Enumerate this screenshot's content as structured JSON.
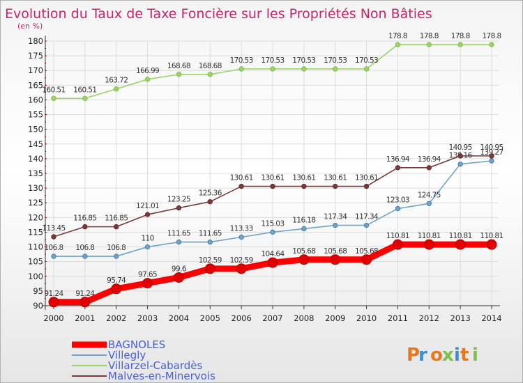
{
  "chart_data": {
    "type": "line",
    "title": "Evolution du Taux de Taxe Foncière sur les Propriétés Non Bâties",
    "unit_label": "(en %)",
    "x": [
      "2000",
      "2001",
      "2002",
      "2003",
      "2004",
      "2005",
      "2006",
      "2007",
      "2008",
      "2009",
      "2010",
      "2011",
      "2012",
      "2013",
      "2014"
    ],
    "ylim": [
      90,
      180
    ],
    "yticks": [
      "90",
      "95",
      "100",
      "105",
      "110",
      "115",
      "120",
      "125",
      "130",
      "135",
      "140",
      "145",
      "150",
      "155",
      "160",
      "165",
      "170",
      "175",
      "180"
    ],
    "grid": true,
    "legend_position": "bottom-left",
    "series": [
      {
        "name": "BAGNOLES",
        "color": "#ff0000",
        "point_color": "#cc0000",
        "bold": true,
        "values": [
          91.24,
          91.24,
          95.74,
          97.65,
          99.6,
          102.59,
          102.59,
          104.64,
          105.68,
          105.68,
          105.68,
          110.81,
          110.81,
          110.81,
          110.81
        ],
        "labels": [
          "91.24",
          "91.24",
          "95.74",
          "97.65",
          "99.6",
          "102.59",
          "102.59",
          "104.64",
          "105.68",
          "105.68",
          "105.68",
          "110.81",
          "110.81",
          "110.81",
          "110.81"
        ]
      },
      {
        "name": "Villegly",
        "color": "#6fa3c9",
        "point_color": "#4a7fb0",
        "bold": false,
        "values": [
          106.8,
          106.8,
          106.8,
          110,
          111.65,
          111.65,
          113.33,
          115.03,
          116.18,
          117.34,
          117.34,
          123.03,
          124.75,
          138.16,
          139.27
        ],
        "labels": [
          "106.8",
          "106.8",
          "106.8",
          "110",
          "111.65",
          "111.65",
          "113.33",
          "115.03",
          "116.18",
          "117.34",
          "117.34",
          "123.03",
          "124.75",
          "138.16",
          "139.27"
        ]
      },
      {
        "name": "Villarzel-Cabardès",
        "color": "#9ad46a",
        "point_color": "#7cc046",
        "bold": false,
        "values": [
          160.51,
          160.51,
          163.72,
          166.99,
          168.68,
          168.68,
          170.53,
          170.53,
          170.53,
          170.53,
          170.53,
          178.8,
          178.8,
          178.8,
          178.8
        ],
        "labels": [
          "160.51",
          "160.51",
          "163.72",
          "166.99",
          "168.68",
          "168.68",
          "170.53",
          "170.53",
          "170.53",
          "170.53",
          "170.53",
          "178.8",
          "178.8",
          "178.8",
          "178.8"
        ]
      },
      {
        "name": "Malves-en-Minervois",
        "color": "#7a3a3a",
        "point_color": "#6a2a2a",
        "bold": false,
        "values": [
          113.45,
          116.85,
          116.85,
          121.01,
          123.25,
          125.36,
          130.61,
          130.61,
          130.61,
          130.61,
          130.61,
          136.94,
          136.94,
          140.95,
          140.95
        ],
        "labels": [
          "113.45",
          "116.85",
          "116.85",
          "121.01",
          "123.25",
          "125.36",
          "130.61",
          "130.61",
          "130.61",
          "130.61",
          "130.61",
          "136.94",
          "136.94",
          "140.95",
          "140.95"
        ]
      }
    ]
  },
  "logo": {
    "text": "Proxiti"
  }
}
